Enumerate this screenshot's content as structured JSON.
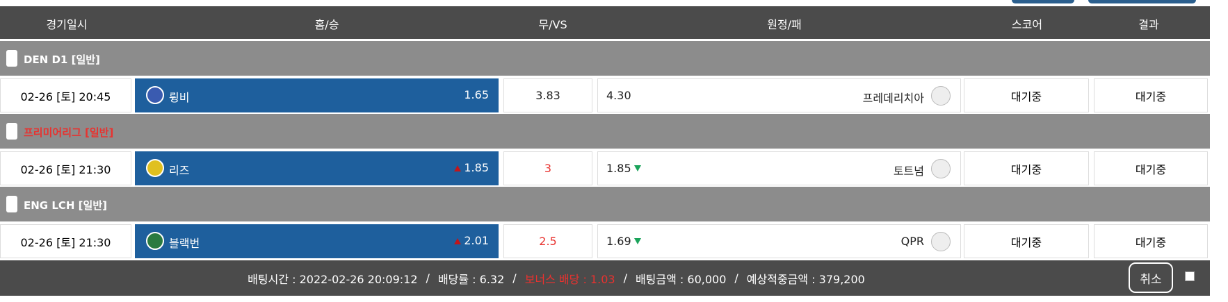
{
  "header": [
    "경기일시",
    "홈/승",
    "무/VS",
    "원정/패",
    "스코어",
    "결과"
  ],
  "groups": [
    {
      "league": "DEN D1 [일반]",
      "league_color": "#ffffff",
      "match": {
        "date": "02-26 [토] 20:45",
        "home": "륑비",
        "home_odds": "1.65",
        "home_trend": null,
        "draw": "3.83",
        "draw_color": "#222222",
        "away_odds": "4.30",
        "away_trend": null,
        "away": "프레데리치아",
        "score": "대기중",
        "result": "대기중"
      }
    },
    {
      "league": "프리미어리그 [일반]",
      "league_color": "#e8322f",
      "match": {
        "date": "02-26 [토] 21:30",
        "home": "리즈",
        "home_odds": "1.85",
        "home_trend": "up",
        "draw": "3",
        "draw_color": "#e8322f",
        "away_odds": "1.85",
        "away_trend": "down",
        "away": "토트넘",
        "score": "대기중",
        "result": "대기중"
      }
    },
    {
      "league": "ENG LCH [일반]",
      "league_color": "#ffffff",
      "match": {
        "date": "02-26 [토] 21:30",
        "home": "블랙번",
        "home_odds": "2.01",
        "home_trend": "up",
        "draw": "2.5",
        "draw_color": "#e8322f",
        "away_odds": "1.69",
        "away_trend": "down",
        "away": "QPR",
        "score": "대기중",
        "result": "대기중"
      }
    }
  ],
  "footer": {
    "items": [
      {
        "text": "배팅시간 : 2022-02-26 20:09:12",
        "color": "#ffffff"
      },
      {
        "text": "배당률 : 6.32",
        "color": "#ffffff"
      },
      {
        "text": "보너스 배당 : 1.03",
        "color": "#e8322f"
      },
      {
        "text": "배팅금액 : 60,000",
        "color": "#ffffff"
      },
      {
        "text": "예상적중금액 : 379,200",
        "color": "#ffffff"
      }
    ],
    "separator": "/",
    "cancel": "취소"
  }
}
